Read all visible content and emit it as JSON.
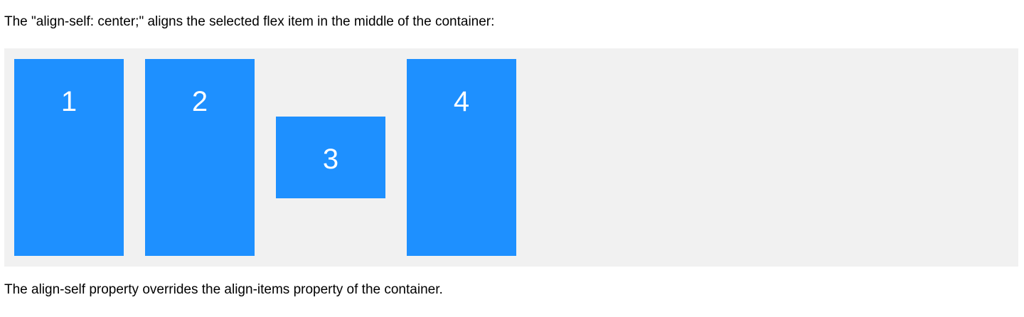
{
  "intro_text": "The \"align-self: center;\" aligns the selected flex item in the middle of the container:",
  "flex_items": [
    {
      "label": "1"
    },
    {
      "label": "2"
    },
    {
      "label": "3"
    },
    {
      "label": "4"
    }
  ],
  "outro_text": "The align-self property overrides the align-items property of the container.",
  "colors": {
    "item_background": "#1e90ff",
    "container_background": "#f1f1f1"
  }
}
